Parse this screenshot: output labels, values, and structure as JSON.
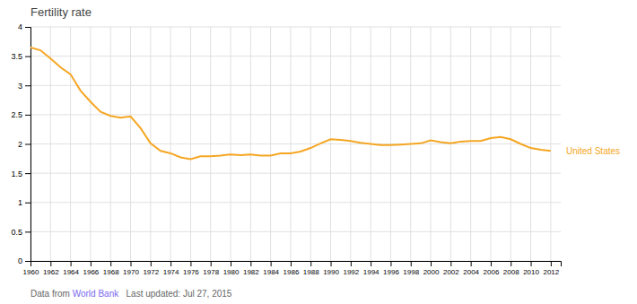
{
  "chart_data": {
    "type": "line",
    "title": "Fertility rate",
    "x": [
      1960,
      1961,
      1962,
      1963,
      1964,
      1965,
      1966,
      1967,
      1968,
      1969,
      1970,
      1971,
      1972,
      1973,
      1974,
      1975,
      1976,
      1977,
      1978,
      1979,
      1980,
      1981,
      1982,
      1983,
      1984,
      1985,
      1986,
      1987,
      1988,
      1989,
      1990,
      1991,
      1992,
      1993,
      1994,
      1995,
      1996,
      1997,
      1998,
      1999,
      2000,
      2001,
      2002,
      2003,
      2004,
      2005,
      2006,
      2007,
      2008,
      2009,
      2010,
      2011,
      2012
    ],
    "values": [
      3.65,
      3.6,
      3.46,
      3.31,
      3.19,
      2.91,
      2.72,
      2.55,
      2.48,
      2.45,
      2.47,
      2.27,
      2.01,
      1.88,
      1.84,
      1.77,
      1.74,
      1.79,
      1.79,
      1.8,
      1.82,
      1.81,
      1.82,
      1.8,
      1.8,
      1.84,
      1.84,
      1.87,
      1.93,
      2.01,
      2.08,
      2.07,
      2.05,
      2.02,
      2.0,
      1.98,
      1.98,
      1.99,
      2.0,
      2.01,
      2.06,
      2.03,
      2.01,
      2.04,
      2.05,
      2.05,
      2.1,
      2.12,
      2.08,
      2.0,
      1.93,
      1.9,
      1.88
    ],
    "color": "#f5a623",
    "xlim": [
      1960,
      2013
    ],
    "xticks": [
      1960,
      1962,
      1964,
      1966,
      1968,
      1970,
      1972,
      1974,
      1976,
      1978,
      1980,
      1982,
      1984,
      1986,
      1988,
      1990,
      1992,
      1994,
      1996,
      1998,
      2000,
      2002,
      2004,
      2006,
      2008,
      2010,
      2012
    ],
    "ylim": [
      0,
      4
    ],
    "yticks": [
      0,
      0.5,
      1,
      1.5,
      2,
      2.5,
      3,
      3.5,
      4
    ],
    "grid": true,
    "annotations": [
      {
        "text": "United States",
        "color": "#f5a623"
      }
    ],
    "footer": [
      {
        "text": "Data from ",
        "color": "#666666"
      },
      {
        "text": "World Bank",
        "color": "#7b68ee"
      },
      {
        "text": "   Last updated: Jul 27, 2015",
        "color": "#666666"
      }
    ]
  }
}
